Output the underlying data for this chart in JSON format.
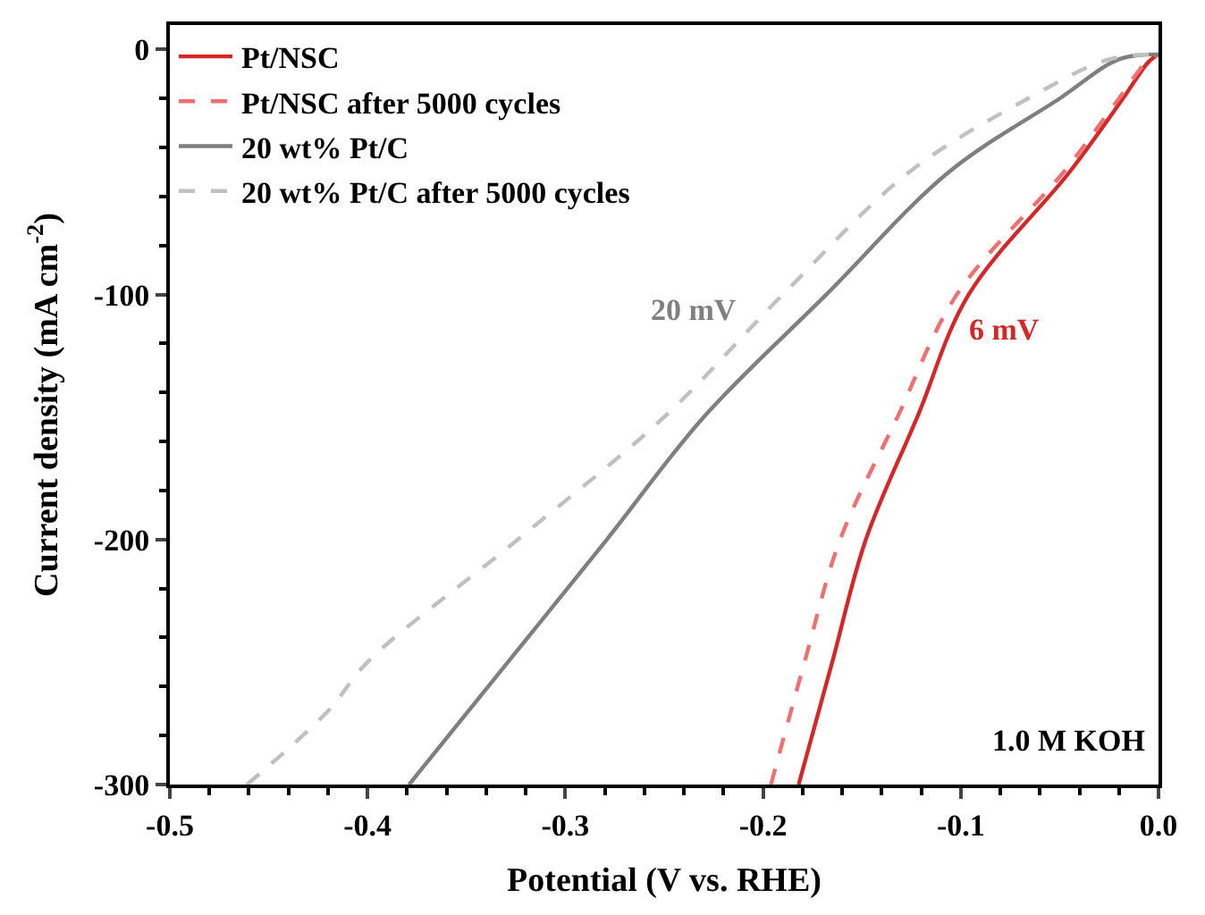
{
  "chart_data": {
    "type": "line",
    "xlabel": "Potential (V vs. RHE)",
    "ylabel": "Current density (mA cm$^{-2}$)",
    "xlim": [
      -0.5,
      0.0
    ],
    "xticks": [
      -0.5,
      -0.4,
      -0.3,
      -0.2,
      -0.1,
      {
        "value": 0.0,
        "label": "0.0"
      }
    ],
    "ylim": [
      -300,
      10
    ],
    "yticks": [
      -300,
      -200,
      -100,
      0
    ],
    "grid": false,
    "legend": "top left",
    "marker": "none",
    "series": [
      {
        "name": "Pt/NSC",
        "color": "#d62728",
        "line_style": "solid",
        "x": [
          -0.182,
          -0.165,
          -0.148,
          -0.122,
          -0.096,
          -0.045,
          -0.018,
          -0.005,
          0.0
        ],
        "values": [
          -300,
          -250,
          -200,
          -150,
          -100,
          -50,
          -20,
          -5,
          -2
        ]
      },
      {
        "name": "Pt/NSC after 5000 cycles",
        "color": "#f07070",
        "line_style": "dashed",
        "x": [
          -0.196,
          -0.179,
          -0.161,
          -0.132,
          -0.102,
          -0.048,
          -0.02,
          -0.006,
          0.0
        ],
        "values": [
          -300,
          -250,
          -200,
          -150,
          -100,
          -50,
          -20,
          -5,
          -2
        ]
      },
      {
        "name": "20 wt% Pt/C",
        "color": "#7f7f7f",
        "line_style": "solid",
        "x": [
          -0.379,
          -0.329,
          -0.279,
          -0.23,
          -0.168,
          -0.106,
          -0.05,
          -0.02,
          0.0
        ],
        "values": [
          -300,
          -250,
          -200,
          -150,
          -100,
          -50,
          -20,
          -4,
          -2
        ]
      },
      {
        "name": "20 wt% Pt/C after 5000 cycles",
        "color": "#c0c0c0",
        "line_style": "dashed",
        "x": [
          -0.461,
          -0.42,
          -0.4,
          -0.324,
          -0.25,
          -0.19,
          -0.126,
          -0.066,
          -0.025,
          0.0
        ],
        "values": [
          -300,
          -270,
          -250,
          -200,
          -150,
          -100,
          -50,
          -20,
          -4,
          -2
        ]
      }
    ],
    "annotations": [
      "20 mV",
      "6 mV",
      "1.0 M KOH"
    ]
  }
}
